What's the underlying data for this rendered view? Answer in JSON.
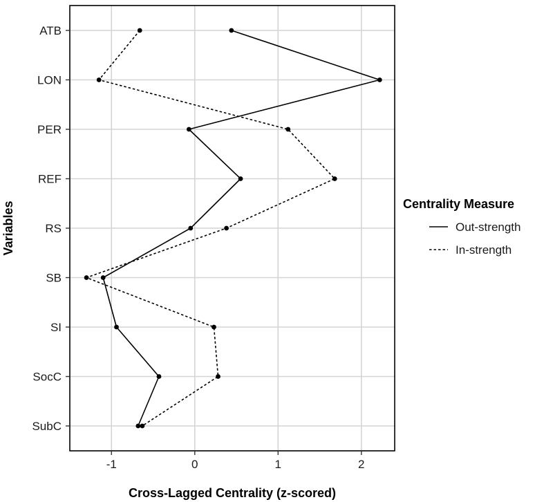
{
  "chart_data": {
    "type": "line",
    "orientation": "horizontal",
    "xlabel": "Cross-Lagged Centrality (z-scored)",
    "ylabel": "Variables",
    "xlim": [
      -1.5,
      2.4
    ],
    "x_ticks": [
      -1,
      0,
      1,
      2
    ],
    "x_tick_labels": [
      "-1",
      "0",
      "1",
      "2"
    ],
    "categories": [
      "ATB",
      "LON",
      "PER",
      "REF",
      "RS",
      "SB",
      "SI",
      "SocC",
      "SubC"
    ],
    "grid": true,
    "legend": {
      "title": "Centrality Measure",
      "position": "right"
    },
    "series": [
      {
        "name": "Out-strength",
        "dash": "solid",
        "color": "#000000",
        "values": [
          0.44,
          2.22,
          -0.07,
          0.55,
          -0.05,
          -1.1,
          -0.94,
          -0.43,
          -0.68
        ]
      },
      {
        "name": "In-strength",
        "dash": "dotted",
        "color": "#000000",
        "values": [
          -0.66,
          -1.15,
          1.12,
          1.68,
          0.38,
          -1.3,
          0.23,
          0.28,
          -0.63
        ]
      }
    ]
  }
}
